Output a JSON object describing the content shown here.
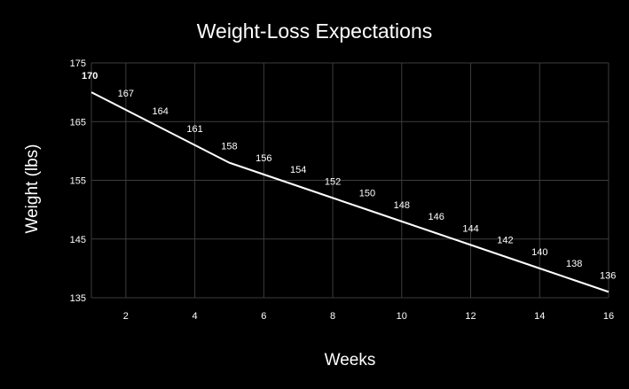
{
  "chart_data": {
    "type": "line",
    "title": "Weight-Loss Expectations",
    "xlabel": "Weeks",
    "ylabel": "Weight (lbs)",
    "x": [
      1,
      2,
      3,
      4,
      5,
      6,
      7,
      8,
      9,
      10,
      11,
      12,
      13,
      14,
      15,
      16
    ],
    "series": [
      {
        "values": [
          170,
          167,
          164,
          161,
          158,
          156,
          154,
          152,
          150,
          148,
          146,
          144,
          142,
          140,
          138,
          136
        ],
        "color": "#ffffff"
      }
    ],
    "data_labels": [
      "170",
      "167",
      "164",
      "161",
      "158",
      "156",
      "154",
      "152",
      "150",
      "148",
      "146",
      "144",
      "142",
      "140",
      "138",
      "136"
    ],
    "xlim": [
      1,
      16
    ],
    "ylim": [
      135,
      175
    ],
    "x_ticks": [
      2,
      4,
      6,
      8,
      10,
      12,
      14,
      16
    ],
    "x_tick_labels": [
      "2",
      "4",
      "6",
      "8",
      "10",
      "12",
      "14",
      "16"
    ],
    "y_ticks": [
      135,
      145,
      155,
      165,
      175
    ],
    "y_tick_labels": [
      "135",
      "145",
      "155",
      "165",
      "175"
    ],
    "grid": true,
    "legend": "none",
    "background_color": "#000000",
    "grid_color": "#3d3d3d",
    "text_color": "#ffffff"
  }
}
